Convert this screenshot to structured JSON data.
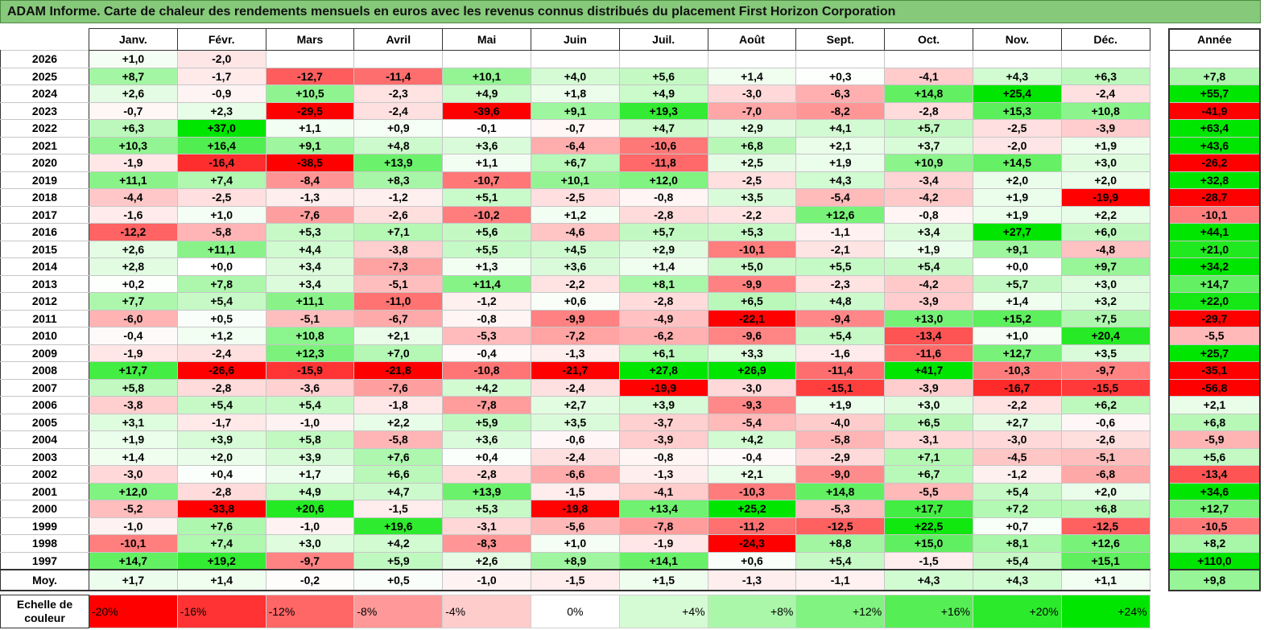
{
  "title": "ADAM Informe. Carte de chaleur des rendements mensuels en euros avec les revenus connus distribués du placement First Horizon Corporation",
  "chart_data": {
    "type": "heatmap",
    "title": "ADAM Informe. Carte de chaleur des rendements mensuels en euros avec les revenus connus distribués du placement First Horizon Corporation",
    "months": [
      "Janv.",
      "Févr.",
      "Mars",
      "Avril",
      "Mai",
      "Juin",
      "Juil.",
      "Août",
      "Sept.",
      "Oct.",
      "Nov.",
      "Déc."
    ],
    "year_header": "Année",
    "avg_label": "Moy.",
    "rows": [
      {
        "year": "2026",
        "values": [
          "+1,0",
          "-2,0",
          null,
          null,
          null,
          null,
          null,
          null,
          null,
          null,
          null,
          null
        ],
        "annual": null
      },
      {
        "year": "2025",
        "values": [
          "+8,7",
          "-1,7",
          "-12,7",
          "-11,4",
          "+10,1",
          "+4,0",
          "+5,6",
          "+1,4",
          "+0,3",
          "-4,1",
          "+4,3",
          "+6,3"
        ],
        "annual": "+7,8"
      },
      {
        "year": "2024",
        "values": [
          "+2,6",
          "-0,9",
          "+10,5",
          "-2,3",
          "+4,9",
          "+1,8",
          "+4,9",
          "-3,0",
          "-6,3",
          "+14,8",
          "+25,4",
          "-2,4"
        ],
        "annual": "+55,7"
      },
      {
        "year": "2023",
        "values": [
          "-0,7",
          "+2,3",
          "-29,5",
          "-2,4",
          "-39,6",
          "+9,1",
          "+19,3",
          "-7,0",
          "-8,2",
          "-2,8",
          "+15,3",
          "+10,8"
        ],
        "annual": "-41,9"
      },
      {
        "year": "2022",
        "values": [
          "+6,3",
          "+37,0",
          "+1,1",
          "+0,9",
          "-0,1",
          "-0,7",
          "+4,7",
          "+2,9",
          "+4,1",
          "+5,7",
          "-2,5",
          "-3,9"
        ],
        "annual": "+63,4"
      },
      {
        "year": "2021",
        "values": [
          "+10,3",
          "+16,4",
          "+9,1",
          "+4,8",
          "+3,6",
          "-6,4",
          "-10,6",
          "+6,8",
          "+2,1",
          "+3,7",
          "-2,0",
          "+1,9"
        ],
        "annual": "+43,6"
      },
      {
        "year": "2020",
        "values": [
          "-1,9",
          "-16,4",
          "-38,5",
          "+13,9",
          "+1,1",
          "+6,7",
          "-11,8",
          "+2,5",
          "+1,9",
          "+10,9",
          "+14,5",
          "+3,0"
        ],
        "annual": "-26,2"
      },
      {
        "year": "2019",
        "values": [
          "+11,1",
          "+7,4",
          "-8,4",
          "+8,3",
          "-10,7",
          "+10,1",
          "+12,0",
          "-2,5",
          "+4,3",
          "-3,4",
          "+2,0",
          "+2,0"
        ],
        "annual": "+32,8"
      },
      {
        "year": "2018",
        "values": [
          "-4,4",
          "-2,5",
          "-1,3",
          "-1,2",
          "+5,1",
          "-2,5",
          "-0,8",
          "+3,5",
          "-5,4",
          "-4,2",
          "+1,9",
          "-19,9"
        ],
        "annual": "-28,7"
      },
      {
        "year": "2017",
        "values": [
          "-1,6",
          "+1,0",
          "-7,6",
          "-2,6",
          "-10,2",
          "+1,2",
          "-2,8",
          "-2,2",
          "+12,6",
          "-0,8",
          "+1,9",
          "+2,2"
        ],
        "annual": "-10,1"
      },
      {
        "year": "2016",
        "values": [
          "-12,2",
          "-5,8",
          "+5,3",
          "+7,1",
          "+5,6",
          "-4,6",
          "+5,7",
          "+5,3",
          "-1,1",
          "+3,4",
          "+27,7",
          "+6,0"
        ],
        "annual": "+44,1"
      },
      {
        "year": "2015",
        "values": [
          "+2,6",
          "+11,1",
          "+4,4",
          "-3,8",
          "+5,5",
          "+4,5",
          "+2,9",
          "-10,1",
          "-2,1",
          "+1,9",
          "+9,1",
          "-4,8"
        ],
        "annual": "+21,0"
      },
      {
        "year": "2014",
        "values": [
          "+2,8",
          "+0,0",
          "+3,4",
          "-7,3",
          "+1,3",
          "+3,6",
          "+1,4",
          "+5,0",
          "+5,5",
          "+5,4",
          "+0,0",
          "+9,7"
        ],
        "annual": "+34,2"
      },
      {
        "year": "2013",
        "values": [
          "+0,2",
          "+7,8",
          "+3,4",
          "-5,1",
          "+11,4",
          "-2,2",
          "+8,1",
          "-9,9",
          "-2,3",
          "-4,2",
          "+5,7",
          "+3,0"
        ],
        "annual": "+14,7"
      },
      {
        "year": "2012",
        "values": [
          "+7,7",
          "+5,4",
          "+11,1",
          "-11,0",
          "-1,2",
          "+0,6",
          "-2,8",
          "+6,5",
          "+4,8",
          "-3,9",
          "+1,4",
          "+3,2"
        ],
        "annual": "+22,0"
      },
      {
        "year": "2011",
        "values": [
          "-6,0",
          "+0,5",
          "-5,1",
          "-6,7",
          "-0,8",
          "-9,9",
          "-4,9",
          "-22,1",
          "-9,4",
          "+13,0",
          "+15,2",
          "+7,5"
        ],
        "annual": "-29,7"
      },
      {
        "year": "2010",
        "values": [
          "-0,4",
          "+1,2",
          "+10,8",
          "+2,1",
          "-5,3",
          "-7,2",
          "-6,2",
          "-9,6",
          "+5,4",
          "-13,4",
          "+1,0",
          "+20,4"
        ],
        "annual": "-5,5"
      },
      {
        "year": "2009",
        "values": [
          "-1,9",
          "-2,4",
          "+12,3",
          "+7,0",
          "-0,4",
          "-1,3",
          "+6,1",
          "+3,3",
          "-1,6",
          "-11,6",
          "+12,7",
          "+3,5"
        ],
        "annual": "+25,7"
      },
      {
        "year": "2008",
        "values": [
          "+17,7",
          "-26,6",
          "-15,9",
          "-21,8",
          "-10,8",
          "-21,7",
          "+27,8",
          "+26,9",
          "-11,4",
          "+41,7",
          "-10,3",
          "-9,7"
        ],
        "annual": "-35,1"
      },
      {
        "year": "2007",
        "values": [
          "+5,8",
          "-2,8",
          "-3,6",
          "-7,6",
          "+4,2",
          "-2,4",
          "-19,9",
          "-3,0",
          "-15,1",
          "-3,9",
          "-16,7",
          "-15,5"
        ],
        "annual": "-56,8"
      },
      {
        "year": "2006",
        "values": [
          "-3,8",
          "+5,4",
          "+5,4",
          "-1,8",
          "-7,8",
          "+2,7",
          "+3,9",
          "-9,3",
          "+1,9",
          "+3,0",
          "-2,2",
          "+6,2"
        ],
        "annual": "+2,1"
      },
      {
        "year": "2005",
        "values": [
          "+3,1",
          "-1,7",
          "-1,0",
          "+2,2",
          "+5,9",
          "+3,5",
          "-3,7",
          "-5,4",
          "-4,0",
          "+6,5",
          "+2,7",
          "-0,6"
        ],
        "annual": "+6,8"
      },
      {
        "year": "2004",
        "values": [
          "+1,9",
          "+3,9",
          "+5,8",
          "-5,8",
          "+3,6",
          "-0,6",
          "-3,9",
          "+4,2",
          "-5,8",
          "-3,1",
          "-3,0",
          "-2,6"
        ],
        "annual": "-5,9"
      },
      {
        "year": "2003",
        "values": [
          "+1,4",
          "+2,0",
          "+3,9",
          "+7,6",
          "+0,4",
          "-2,4",
          "-0,8",
          "-0,4",
          "-2,9",
          "+7,1",
          "-4,5",
          "-5,1"
        ],
        "annual": "+5,6"
      },
      {
        "year": "2002",
        "values": [
          "-3,0",
          "+0,4",
          "+1,7",
          "+6,6",
          "-2,8",
          "-6,6",
          "-1,3",
          "+2,1",
          "-9,0",
          "+6,7",
          "-1,2",
          "-6,8"
        ],
        "annual": "-13,4"
      },
      {
        "year": "2001",
        "values": [
          "+12,0",
          "-2,8",
          "+4,9",
          "+4,7",
          "+13,9",
          "-1,5",
          "-4,1",
          "-10,3",
          "+14,8",
          "-5,5",
          "+5,4",
          "+2,0"
        ],
        "annual": "+34,6"
      },
      {
        "year": "2000",
        "values": [
          "-5,2",
          "-33,8",
          "+20,6",
          "-1,5",
          "+5,3",
          "-19,8",
          "+13,4",
          "+25,2",
          "-5,3",
          "+17,7",
          "+7,2",
          "+6,8"
        ],
        "annual": "+12,7"
      },
      {
        "year": "1999",
        "values": [
          "-1,0",
          "+7,6",
          "-1,0",
          "+19,6",
          "-3,1",
          "-5,6",
          "-7,8",
          "-11,2",
          "-12,5",
          "+22,5",
          "+0,7",
          "-12,5"
        ],
        "annual": "-10,5"
      },
      {
        "year": "1998",
        "values": [
          "-10,1",
          "+7,4",
          "+3,0",
          "+4,2",
          "-8,3",
          "+1,0",
          "-1,9",
          "-24,3",
          "+8,8",
          "+15,0",
          "+8,1",
          "+12,6"
        ],
        "annual": "+8,2"
      },
      {
        "year": "1997",
        "values": [
          "+14,7",
          "+19,2",
          "-9,7",
          "+5,9",
          "+2,6",
          "+8,9",
          "+14,1",
          "+0,6",
          "+5,4",
          "-1,5",
          "+5,4",
          "+15,1"
        ],
        "annual": "+110,0"
      }
    ],
    "averages": {
      "values": [
        "+1,7",
        "+1,4",
        "-0,2",
        "+0,5",
        "-1,0",
        "-1,5",
        "+1,5",
        "-1,3",
        "-1,1",
        "+4,3",
        "+4,3",
        "+1,1"
      ],
      "annual": "+9,8"
    },
    "scale": {
      "label_line1": "Echelle de",
      "label_line2": "couleur",
      "steps": [
        {
          "label": "-20%",
          "value": -20
        },
        {
          "label": "-16%",
          "value": -16
        },
        {
          "label": "-12%",
          "value": -12
        },
        {
          "label": "-8%",
          "value": -8
        },
        {
          "label": "-4%",
          "value": -4
        },
        {
          "label": "0%",
          "value": 0
        },
        {
          "label": "+4%",
          "value": 4
        },
        {
          "label": "+8%",
          "value": 8
        },
        {
          "label": "+12%",
          "value": 12
        },
        {
          "label": "+16%",
          "value": 16
        },
        {
          "label": "+20%",
          "value": 20
        },
        {
          "label": "+24%",
          "value": 24
        }
      ]
    },
    "colors": {
      "negative_max": "#ff0000",
      "neutral": "#ffffff",
      "positive_max": "#00e600"
    },
    "color_limits": [
      -20,
      24
    ]
  }
}
